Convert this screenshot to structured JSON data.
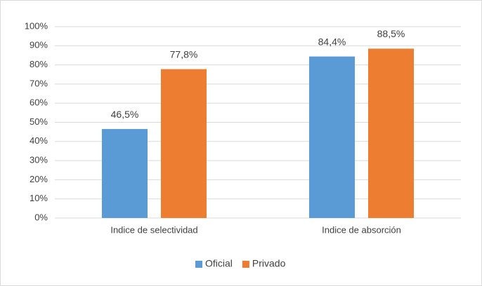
{
  "chart_data": {
    "type": "bar",
    "categories": [
      "Indice de selectividad",
      "Indice de absorción"
    ],
    "series": [
      {
        "name": "Oficial",
        "color": "#5b9bd5",
        "values": [
          46.5,
          84.4
        ],
        "value_labels": [
          "46,5%",
          "84,4%"
        ]
      },
      {
        "name": "Privado",
        "color": "#ed7d31",
        "values": [
          77.8,
          88.5
        ],
        "value_labels": [
          "77,8%",
          "88,5%"
        ]
      }
    ],
    "ylim": [
      0,
      100
    ],
    "yticks": [
      {
        "value": 0,
        "label": "0%"
      },
      {
        "value": 10,
        "label": "10%"
      },
      {
        "value": 20,
        "label": "20%"
      },
      {
        "value": 30,
        "label": "30%"
      },
      {
        "value": 40,
        "label": "40%"
      },
      {
        "value": 50,
        "label": "50%"
      },
      {
        "value": 60,
        "label": "60%"
      },
      {
        "value": 70,
        "label": "70%"
      },
      {
        "value": 80,
        "label": "80%"
      },
      {
        "value": 90,
        "label": "90%"
      },
      {
        "value": 100,
        "label": "100%"
      }
    ],
    "grid": true,
    "legend": "bottom"
  }
}
